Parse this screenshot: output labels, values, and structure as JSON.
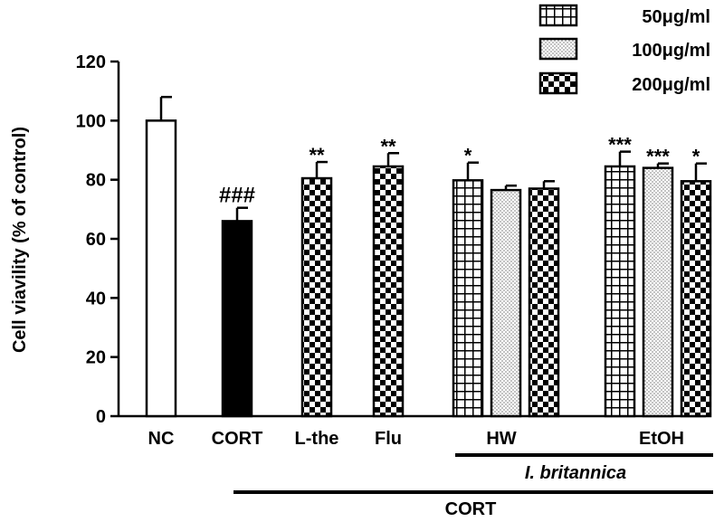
{
  "chart_data": {
    "type": "bar",
    "ylabel": "Cell viavility (% of control)",
    "ylim": [
      0,
      120
    ],
    "yticks": [
      0,
      20,
      40,
      60,
      80,
      100,
      120
    ],
    "grid": false,
    "legend_position": "top-right",
    "legend": [
      {
        "label": "50μg/ml",
        "pattern": "grid"
      },
      {
        "label": "100μg/ml",
        "pattern": "dots"
      },
      {
        "label": "200μg/ml",
        "pattern": "checker"
      }
    ],
    "bars": [
      {
        "group": "NC",
        "value": 100,
        "error": 8,
        "pattern": "white",
        "annotation": ""
      },
      {
        "group": "CORT",
        "value": 66,
        "error": 4.5,
        "pattern": "black",
        "annotation": "###"
      },
      {
        "group": "L-the",
        "value": 80.5,
        "error": 5.5,
        "pattern": "checker",
        "annotation": "**"
      },
      {
        "group": "Flu",
        "value": 84.5,
        "error": 4.5,
        "pattern": "checker",
        "annotation": "**"
      },
      {
        "group": "HW",
        "value": 79.8,
        "error": 6,
        "pattern": "grid",
        "annotation": "*"
      },
      {
        "group": "HW",
        "value": 76.5,
        "error": 1.5,
        "pattern": "dots",
        "annotation": ""
      },
      {
        "group": "HW",
        "value": 77,
        "error": 2.5,
        "pattern": "checker",
        "annotation": ""
      },
      {
        "group": "EtOH",
        "value": 84.5,
        "error": 5,
        "pattern": "grid",
        "annotation": "***"
      },
      {
        "group": "EtOH",
        "value": 84,
        "error": 1.5,
        "pattern": "dots",
        "annotation": "***"
      },
      {
        "group": "EtOH",
        "value": 79.5,
        "error": 6,
        "pattern": "checker",
        "annotation": "*"
      }
    ],
    "x_labels": [
      "NC",
      "CORT",
      "L-the",
      "Flu",
      "HW",
      "EtOH"
    ],
    "bracket_labels": [
      "I. britannica",
      "CORT"
    ]
  }
}
